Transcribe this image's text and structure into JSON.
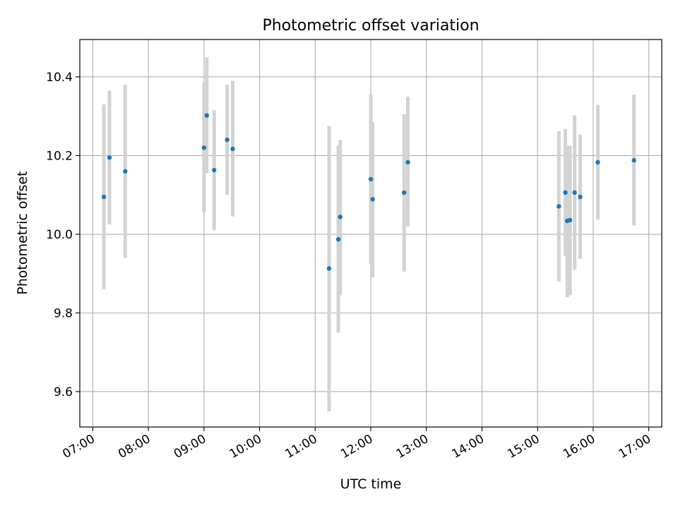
{
  "chart_data": {
    "type": "scatter",
    "title": "Photometric offset variation",
    "xlabel": "UTC time",
    "ylabel": "Photometric offset",
    "xlim": [
      "06:46",
      "17:14"
    ],
    "ylim": [
      9.51,
      10.495
    ],
    "x_ticks": [
      "07:00",
      "08:00",
      "09:00",
      "10:00",
      "11:00",
      "12:00",
      "13:00",
      "14:00",
      "15:00",
      "16:00",
      "17:00"
    ],
    "y_ticks": [
      9.6,
      9.8,
      10.0,
      10.2,
      10.4
    ],
    "y_tick_labels": [
      "9.6",
      "9.8",
      "10.0",
      "10.2",
      "10.4"
    ],
    "grid": true,
    "colors": {
      "point": "#1f77b4",
      "errorbar": "#d3d3d3",
      "grid": "#b0b0b0"
    },
    "points": [
      {
        "x": "07:12",
        "y": 10.095,
        "lo": 9.86,
        "hi": 10.33
      },
      {
        "x": "07:18",
        "y": 10.195,
        "lo": 10.025,
        "hi": 10.365
      },
      {
        "x": "07:35",
        "y": 10.16,
        "lo": 9.94,
        "hi": 10.38
      },
      {
        "x": "09:00",
        "y": 10.22,
        "lo": 10.055,
        "hi": 10.385
      },
      {
        "x": "09:03",
        "y": 10.302,
        "lo": 10.155,
        "hi": 10.45
      },
      {
        "x": "09:11",
        "y": 10.163,
        "lo": 10.01,
        "hi": 10.315
      },
      {
        "x": "09:25",
        "y": 10.24,
        "lo": 10.1,
        "hi": 10.38
      },
      {
        "x": "09:31",
        "y": 10.217,
        "lo": 10.045,
        "hi": 10.39
      },
      {
        "x": "11:15",
        "y": 9.913,
        "lo": 9.55,
        "hi": 10.275
      },
      {
        "x": "11:25",
        "y": 9.987,
        "lo": 9.75,
        "hi": 10.225
      },
      {
        "x": "11:27",
        "y": 10.044,
        "lo": 9.845,
        "hi": 10.24
      },
      {
        "x": "12:00",
        "y": 10.14,
        "lo": 9.925,
        "hi": 10.355
      },
      {
        "x": "12:02",
        "y": 10.089,
        "lo": 9.89,
        "hi": 10.285
      },
      {
        "x": "12:36",
        "y": 10.106,
        "lo": 9.905,
        "hi": 10.305
      },
      {
        "x": "12:40",
        "y": 10.183,
        "lo": 10.02,
        "hi": 10.35
      },
      {
        "x": "15:23",
        "y": 10.071,
        "lo": 9.88,
        "hi": 10.262
      },
      {
        "x": "15:30",
        "y": 10.106,
        "lo": 9.945,
        "hi": 10.268
      },
      {
        "x": "15:32",
        "y": 10.034,
        "lo": 9.84,
        "hi": 10.225
      },
      {
        "x": "15:35",
        "y": 10.036,
        "lo": 9.845,
        "hi": 10.225
      },
      {
        "x": "15:40",
        "y": 10.106,
        "lo": 9.91,
        "hi": 10.302
      },
      {
        "x": "15:46",
        "y": 10.095,
        "lo": 9.938,
        "hi": 10.253
      },
      {
        "x": "16:05",
        "y": 10.183,
        "lo": 10.037,
        "hi": 10.329
      },
      {
        "x": "16:44",
        "y": 10.188,
        "lo": 10.022,
        "hi": 10.355
      }
    ]
  }
}
